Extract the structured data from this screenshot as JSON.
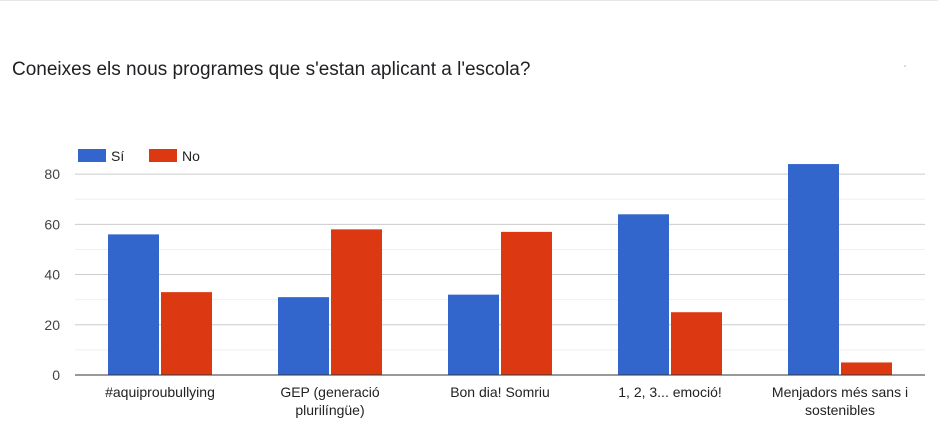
{
  "question": "Coneixes els nous programes que s'estan aplicant a l'escola?",
  "chart_data": {
    "type": "bar",
    "title": "",
    "xlabel": "",
    "ylabel": "",
    "categories": [
      [
        "#aquiproubullying"
      ],
      [
        "GEP (generació",
        "plurilíngüe)"
      ],
      [
        "Bon dia! Somriu"
      ],
      [
        "1, 2, 3... emoció!"
      ],
      [
        "Menjadors més sans i",
        "sostenibles"
      ]
    ],
    "series": [
      {
        "name": "Sí",
        "color": "#3366cc",
        "values": [
          56,
          31,
          32,
          64,
          84
        ]
      },
      {
        "name": "No",
        "color": "#dc3912",
        "values": [
          33,
          58,
          57,
          25,
          5
        ]
      }
    ],
    "ylim": [
      0,
      90
    ],
    "yticks": [
      0,
      20,
      40,
      60,
      80
    ],
    "grid": true,
    "legend": "top-left"
  }
}
